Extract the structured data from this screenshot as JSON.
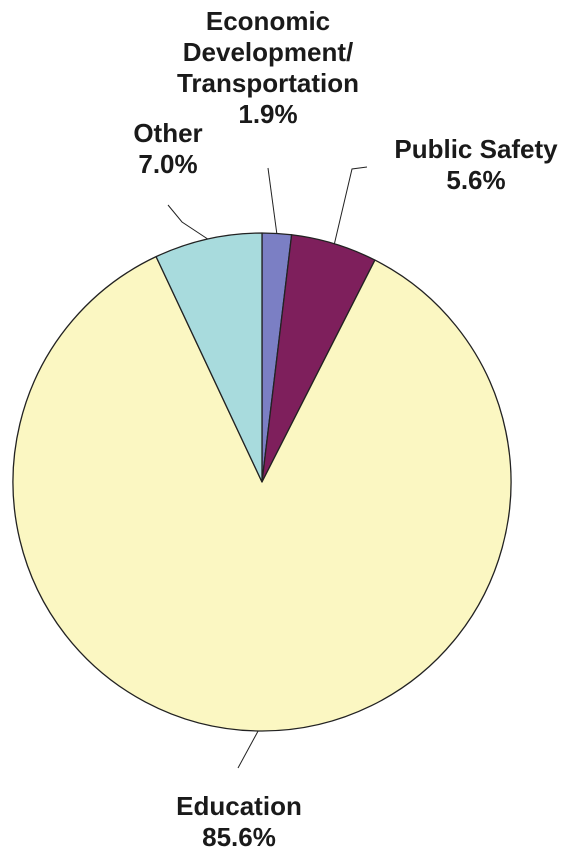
{
  "chart_data": {
    "type": "pie",
    "start_angle_deg": 0,
    "direction": "clockwise",
    "slices": [
      {
        "name_lines": [
          "Economic",
          "Development/",
          "Transportation"
        ],
        "label": "1.9%",
        "value": 1.9,
        "color": "#7b7fc4"
      },
      {
        "name_lines": [
          "Public Safety"
        ],
        "label": "5.6%",
        "value": 5.6,
        "color": "#7e1f5c"
      },
      {
        "name_lines": [
          "Education"
        ],
        "label": "85.6%",
        "value": 85.6,
        "color": "#fbf7c2"
      },
      {
        "name_lines": [
          "Other"
        ],
        "label": "7.0%",
        "value": 7.0,
        "color": "#a8dbdd"
      }
    ]
  }
}
